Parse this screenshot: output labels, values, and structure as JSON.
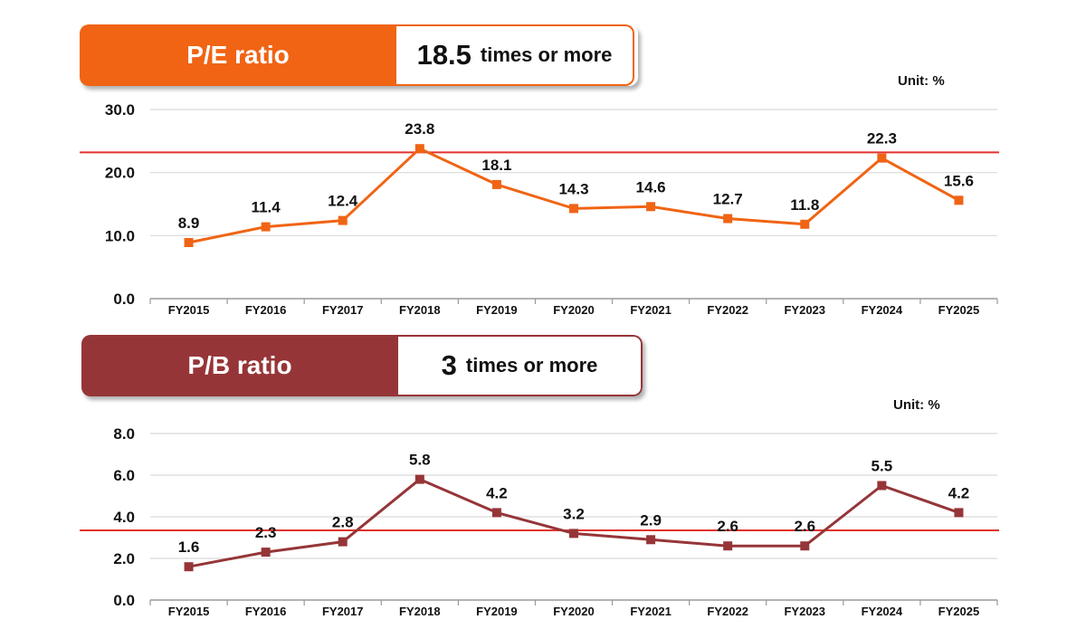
{
  "charts": [
    {
      "id": "pe",
      "header": {
        "label": "P/E ratio",
        "target_value": "18.5",
        "target_suffix": "times or more"
      },
      "unit": "Unit: %",
      "colors": {
        "header": "#f06414",
        "line": "#f06414",
        "target_line": "#e2322e"
      },
      "chart_data": {
        "type": "line",
        "categories": [
          "FY2015",
          "FY2016",
          "FY2017",
          "FY2018",
          "FY2019",
          "FY2020",
          "FY2021",
          "FY2022",
          "FY2023",
          "FY2024",
          "FY2025"
        ],
        "series": [
          {
            "values": [
              8.9,
              11.4,
              12.4,
              23.8,
              18.1,
              14.3,
              14.6,
              12.7,
              11.8,
              22.3,
              15.6
            ]
          }
        ],
        "value_labels": [
          "8.9",
          "11.4",
          "12.4",
          "23.8",
          "18.1",
          "14.3",
          "14.6",
          "12.7",
          "11.8",
          "22.3",
          "15.6"
        ],
        "ylim": [
          0,
          30
        ],
        "yticks": [
          0,
          10,
          20,
          30
        ],
        "ytick_labels": [
          "0.0",
          "10.0",
          "20.0",
          "30.0"
        ],
        "reference_line": 23.2,
        "grid": true
      }
    },
    {
      "id": "pb",
      "header": {
        "label": "P/B ratio",
        "target_value": "3",
        "target_suffix": "times or more"
      },
      "unit": "Unit: %",
      "colors": {
        "header": "#963538",
        "line": "#963538",
        "target_line": "#e2322e"
      },
      "chart_data": {
        "type": "line",
        "categories": [
          "FY2015",
          "FY2016",
          "FY2017",
          "FY2018",
          "FY2019",
          "FY2020",
          "FY2021",
          "FY2022",
          "FY2023",
          "FY2024",
          "FY2025"
        ],
        "series": [
          {
            "values": [
              1.6,
              2.3,
              2.8,
              5.8,
              4.2,
              3.2,
              2.9,
              2.6,
              2.6,
              5.5,
              4.2
            ]
          }
        ],
        "value_labels": [
          "1.6",
          "2.3",
          "2.8",
          "5.8",
          "4.2",
          "3.2",
          "2.9",
          "2.6",
          "2.6",
          "5.5",
          "4.2"
        ],
        "ylim": [
          0,
          8
        ],
        "yticks": [
          0,
          2,
          4,
          6,
          8
        ],
        "ytick_labels": [
          "0.0",
          "2.0",
          "4.0",
          "6.0",
          "8.0"
        ],
        "reference_line": 3.35,
        "grid": true
      }
    }
  ]
}
